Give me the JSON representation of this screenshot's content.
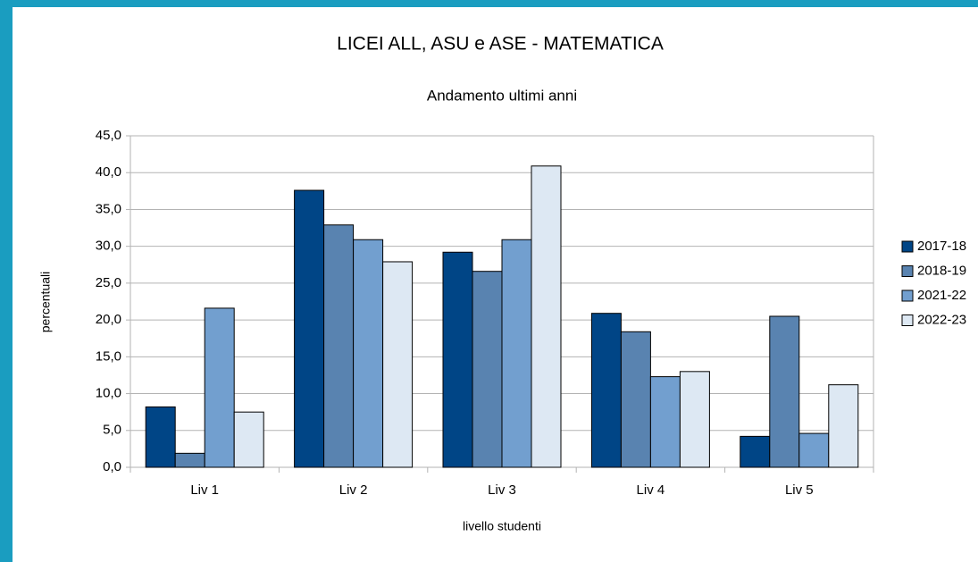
{
  "chart_data": {
    "type": "bar",
    "title": "LICEI ALL, ASU e ASE - MATEMATICA",
    "subtitle": "Andamento ultimi anni",
    "x_label": "livello studenti",
    "y_label": "percentuali",
    "categories": [
      "Liv 1",
      "Liv 2",
      "Liv 3",
      "Liv 4",
      "Liv 5"
    ],
    "series": [
      {
        "name": "2017-18",
        "color": "#004586",
        "values": [
          8.2,
          37.6,
          29.2,
          20.9,
          4.2
        ]
      },
      {
        "name": "2018-19",
        "color": "#5983b0",
        "values": [
          1.9,
          32.9,
          26.6,
          18.4,
          20.5
        ]
      },
      {
        "name": "2021-22",
        "color": "#729fcf",
        "values": [
          21.6,
          30.9,
          30.9,
          12.3,
          4.6
        ]
      },
      {
        "name": "2022-23",
        "color": "#dde8f3",
        "values": [
          7.5,
          27.9,
          40.9,
          13.0,
          11.2
        ]
      }
    ],
    "ylim": [
      0,
      45
    ],
    "yticks": [
      {
        "value": 0,
        "label": "0,0"
      },
      {
        "value": 5,
        "label": "5,0"
      },
      {
        "value": 10,
        "label": "10,0"
      },
      {
        "value": 15,
        "label": "15,0"
      },
      {
        "value": 20,
        "label": "20,0"
      },
      {
        "value": 25,
        "label": "25,0"
      },
      {
        "value": 30,
        "label": "30,0"
      },
      {
        "value": 35,
        "label": "35,0"
      },
      {
        "value": 40,
        "label": "40,0"
      },
      {
        "value": 45,
        "label": "45,0"
      }
    ],
    "grid": true,
    "legend": "right"
  }
}
